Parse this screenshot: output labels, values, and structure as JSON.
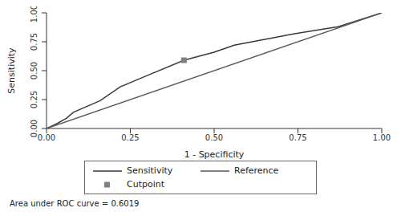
{
  "chart_data": {
    "type": "line",
    "x_label": "1 - Specificity",
    "y_label": "Sensitivity",
    "xlim": [
      0,
      1
    ],
    "ylim": [
      0,
      1
    ],
    "xticks": [
      {
        "value": 0,
        "label": "0.00"
      },
      {
        "value": 0.25,
        "label": "0.25"
      },
      {
        "value": 0.5,
        "label": "0.50"
      },
      {
        "value": 0.75,
        "label": "0.75"
      },
      {
        "value": 1,
        "label": "1.00"
      }
    ],
    "yticks": [
      {
        "value": 0,
        "label": "0.00"
      },
      {
        "value": 0.25,
        "label": "0.25"
      },
      {
        "value": 0.5,
        "label": "0.50"
      },
      {
        "value": 0.75,
        "label": "0.75"
      },
      {
        "value": 1,
        "label": "1.00"
      }
    ],
    "grid": false,
    "legend": "bottom",
    "annotations": [
      "Area under ROC curve = 0.6019"
    ],
    "series": [
      {
        "name": "Sensitivity",
        "type": "line",
        "color": "#3a3a3a",
        "marker": "none",
        "line_style": "solid",
        "x": [
          0,
          0.03,
          0.06,
          0.08,
          0.16,
          0.22,
          0.31,
          0.41,
          0.5,
          0.56,
          0.74,
          0.87,
          1
        ],
        "values": [
          0,
          0.04,
          0.09,
          0.14,
          0.24,
          0.36,
          0.47,
          0.59,
          0.66,
          0.72,
          0.82,
          0.88,
          1
        ]
      },
      {
        "name": "Reference",
        "type": "line",
        "color": "#5a5a5a",
        "marker": "none",
        "line_style": "solid",
        "x": [
          0,
          1
        ],
        "values": [
          0,
          1
        ]
      },
      {
        "name": "Cutpoint",
        "type": "scatter",
        "color": "#808080",
        "marker": "square",
        "x": [
          0.41
        ],
        "values": [
          0.59
        ]
      }
    ]
  }
}
